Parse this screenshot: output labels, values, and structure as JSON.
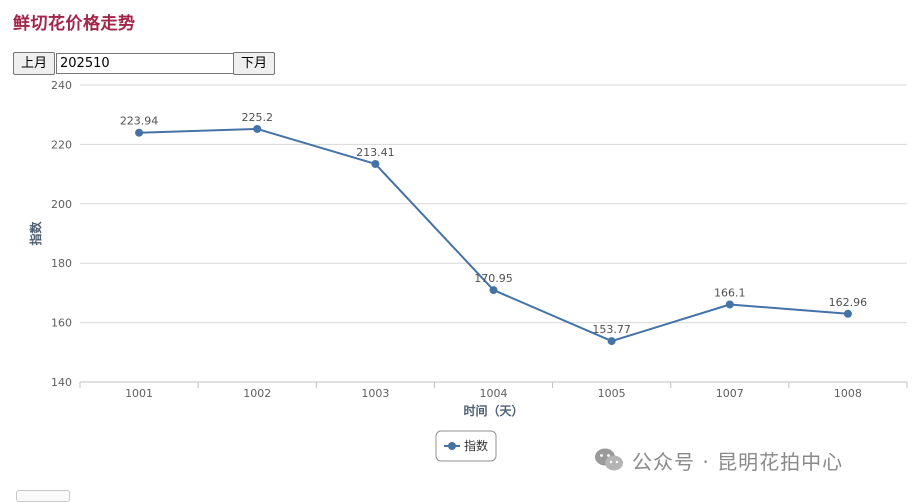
{
  "page": {
    "title": "鲜切花价格走势"
  },
  "controls": {
    "prev_label": "上月",
    "month_value": "202510",
    "next_label": "下月"
  },
  "chart_data": {
    "type": "line",
    "categories": [
      "1001",
      "1002",
      "1003",
      "1004",
      "1005",
      "1007",
      "1008"
    ],
    "series": [
      {
        "name": "指数",
        "values": [
          223.94,
          225.2,
          213.41,
          170.95,
          153.77,
          166.1,
          162.96
        ],
        "labels": [
          "223.94",
          "225.2",
          "213.41",
          "170.95",
          "153.77",
          "166.1",
          "162.96"
        ]
      }
    ],
    "xlabel": "时间（天）",
    "ylabel": "指数",
    "ylim": [
      140,
      240
    ],
    "yticks": [
      "140",
      "160",
      "180",
      "200",
      "220",
      "240"
    ],
    "grid": true,
    "legend": "bottom-center",
    "colors": {
      "line": "#4572a7",
      "grid": "#d8d8d8",
      "axis_text": "#606060",
      "axis_title": "#4d6075"
    }
  },
  "watermark": {
    "text": "公众号 · 昆明花拍中心",
    "icon": "wechat-icon"
  }
}
